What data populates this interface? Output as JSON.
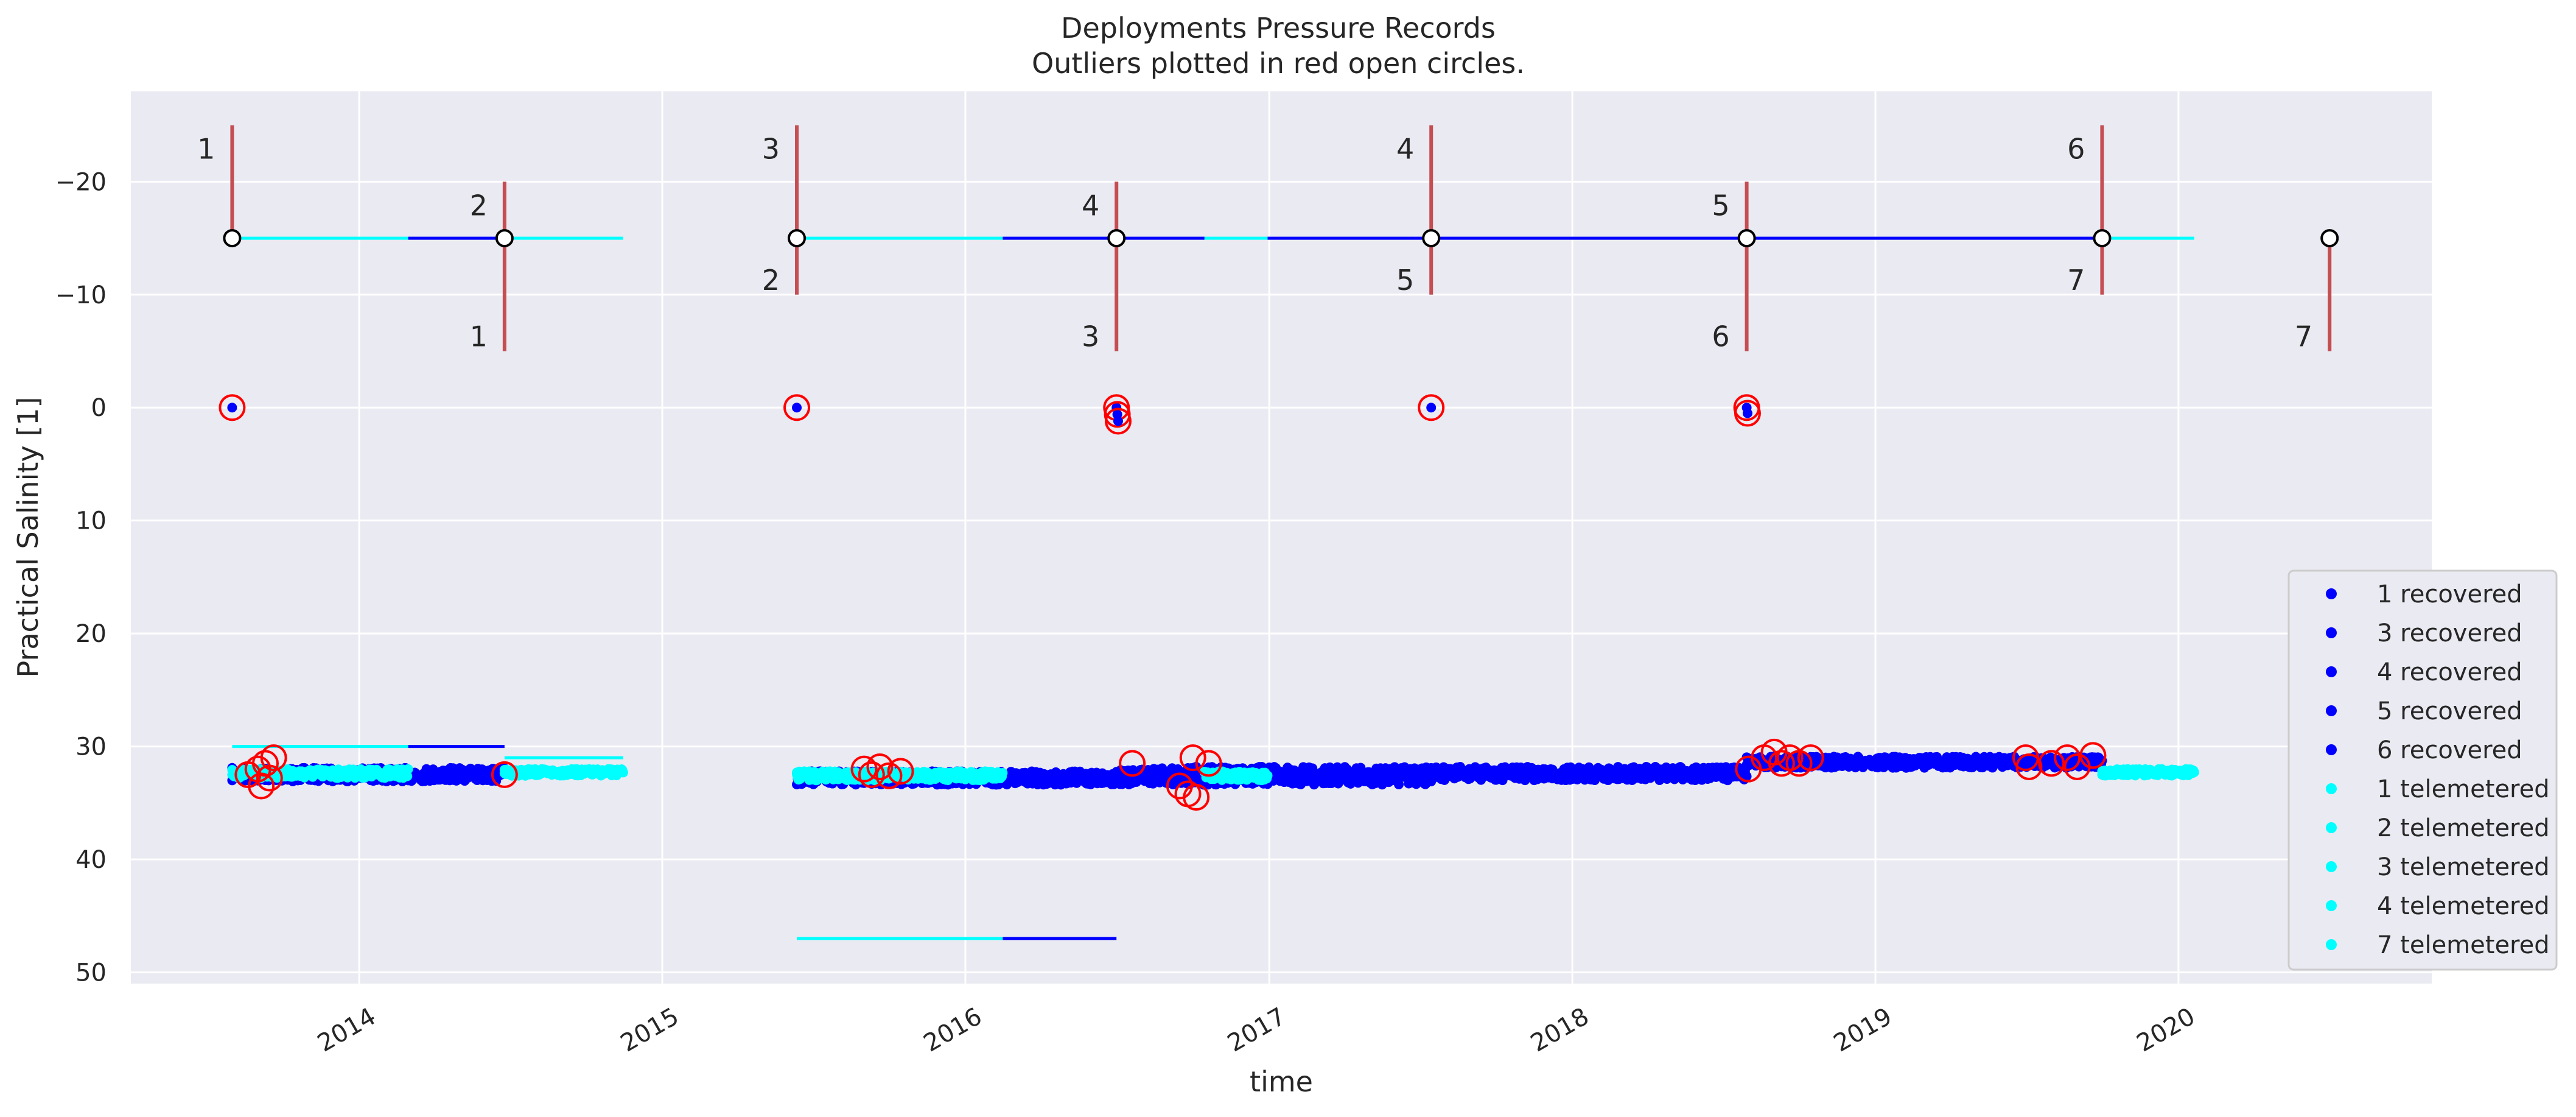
{
  "chart_data": {
    "type": "scatter",
    "title": "Deployments Pressure Records",
    "subtitle": "Outliers plotted in red open circles.",
    "xlabel": "time",
    "ylabel": "Practical Salinity [1]",
    "x_type": "date",
    "xlim": [
      "2013-04-01",
      "2020-11-01"
    ],
    "ylim": [
      51,
      -28
    ],
    "y_inverted": true,
    "x_ticks": [
      "2014",
      "2015",
      "2016",
      "2017",
      "2018",
      "2019",
      "2020"
    ],
    "x_tick_dates": [
      "2014-01-01",
      "2015-01-01",
      "2016-01-01",
      "2017-01-01",
      "2018-01-01",
      "2019-01-01",
      "2020-01-01"
    ],
    "y_ticks": [
      -20,
      -10,
      0,
      10,
      20,
      30,
      40,
      50
    ],
    "y_tick_labels": [
      "−20",
      "−10",
      "0",
      "10",
      "20",
      "30",
      "40",
      "50"
    ],
    "grid": true,
    "background": "#eaeaf2",
    "legend_position": "lower-right",
    "colors": {
      "recovered": "#0000ff",
      "telemetered": "#00ffff",
      "outlier": "#ff0000",
      "marker_line": "#c44e52"
    },
    "legend": [
      {
        "label": "1 recovered",
        "color": "#0000ff"
      },
      {
        "label": "3 recovered",
        "color": "#0000ff"
      },
      {
        "label": "4 recovered",
        "color": "#0000ff"
      },
      {
        "label": "5 recovered",
        "color": "#0000ff"
      },
      {
        "label": "6 recovered",
        "color": "#0000ff"
      },
      {
        "label": "1 telemetered",
        "color": "#00ffff"
      },
      {
        "label": "2 telemetered",
        "color": "#00ffff"
      },
      {
        "label": "3 telemetered",
        "color": "#00ffff"
      },
      {
        "label": "4 telemetered",
        "color": "#00ffff"
      },
      {
        "label": "7 telemetered",
        "color": "#00ffff"
      }
    ],
    "deployment_markers": [
      {
        "label": "1",
        "date": "2013-08-01",
        "y": -15,
        "line_to": -25,
        "label_side": "above"
      },
      {
        "label": "2",
        "date": "2014-06-25",
        "y": -15,
        "line_to": -20,
        "label_side": "above"
      },
      {
        "label": "1",
        "date": "2014-06-25",
        "y": -15,
        "line_to": -5,
        "label_side": "below"
      },
      {
        "label": "3",
        "date": "2015-06-12",
        "y": -15,
        "line_to": -25,
        "label_side": "above"
      },
      {
        "label": "2",
        "date": "2015-06-12",
        "y": -15,
        "line_to": -10,
        "label_side": "below"
      },
      {
        "label": "4",
        "date": "2016-07-01",
        "y": -15,
        "line_to": -20,
        "label_side": "above"
      },
      {
        "label": "3",
        "date": "2016-07-01",
        "y": -15,
        "line_to": -5,
        "label_side": "below"
      },
      {
        "label": "4",
        "date": "2017-07-15",
        "y": -15,
        "line_to": -25,
        "label_side": "above"
      },
      {
        "label": "5",
        "date": "2017-07-15",
        "y": -15,
        "line_to": -10,
        "label_side": "below"
      },
      {
        "label": "5",
        "date": "2018-07-30",
        "y": -15,
        "line_to": -20,
        "label_side": "above"
      },
      {
        "label": "6",
        "date": "2018-07-30",
        "y": -15,
        "line_to": -5,
        "label_side": "below"
      },
      {
        "label": "6",
        "date": "2019-10-01",
        "y": -15,
        "line_to": -25,
        "label_side": "above"
      },
      {
        "label": "7",
        "date": "2019-10-01",
        "y": -15,
        "line_to": -10,
        "label_side": "below"
      },
      {
        "label": "7",
        "date": "2020-07-01",
        "y": -15,
        "line_to": -5,
        "label_side": "below"
      }
    ],
    "deployment_spans": [
      {
        "from": "2013-08-01",
        "to": "2014-03-01",
        "y": -15,
        "color": "#00ffff"
      },
      {
        "from": "2014-03-01",
        "to": "2014-06-25",
        "y": -15,
        "color": "#0000ff"
      },
      {
        "from": "2014-06-25",
        "to": "2014-11-15",
        "y": -15,
        "color": "#00ffff"
      },
      {
        "from": "2015-06-12",
        "to": "2016-02-15",
        "y": -15,
        "color": "#00ffff"
      },
      {
        "from": "2016-02-15",
        "to": "2016-10-15",
        "y": -15,
        "color": "#0000ff"
      },
      {
        "from": "2016-10-15",
        "to": "2016-12-30",
        "y": -15,
        "color": "#00ffff"
      },
      {
        "from": "2016-12-30",
        "to": "2019-10-01",
        "y": -15,
        "color": "#0000ff"
      },
      {
        "from": "2019-10-01",
        "to": "2020-01-20",
        "y": -15,
        "color": "#00ffff"
      }
    ],
    "lines": [
      {
        "from": "2013-08-01",
        "to": "2014-03-01",
        "y": 30,
        "color": "#00ffff"
      },
      {
        "from": "2014-03-01",
        "to": "2014-06-25",
        "y": 30,
        "color": "#0000ff"
      },
      {
        "from": "2014-06-25",
        "to": "2014-11-15",
        "y": 31,
        "color": "#00ffff"
      },
      {
        "from": "2015-06-12",
        "to": "2016-02-15",
        "y": 47,
        "color": "#00ffff"
      },
      {
        "from": "2016-02-15",
        "to": "2016-07-01",
        "y": 47,
        "color": "#0000ff"
      }
    ],
    "series": [
      {
        "name": "1 recovered",
        "color": "#0000ff",
        "from": "2013-08-01",
        "to": "2014-06-25",
        "y_mean": 32.5,
        "y_spread": 0.6
      },
      {
        "name": "1 telemetered",
        "color": "#00ffff",
        "from": "2013-08-01",
        "to": "2014-03-01",
        "y_mean": 32.4,
        "y_spread": 0.4
      },
      {
        "name": "2 telemetered",
        "color": "#00ffff",
        "from": "2014-06-25",
        "to": "2014-11-15",
        "y_mean": 32.3,
        "y_spread": 0.3
      },
      {
        "name": "3 recovered",
        "color": "#0000ff",
        "from": "2015-06-12",
        "to": "2016-07-01",
        "y_mean": 32.8,
        "y_spread": 0.6
      },
      {
        "name": "3 telemetered",
        "color": "#00ffff",
        "from": "2015-06-12",
        "to": "2016-02-15",
        "y_mean": 32.6,
        "y_spread": 0.4
      },
      {
        "name": "4 recovered",
        "color": "#0000ff",
        "from": "2016-07-01",
        "to": "2017-07-15",
        "y_mean": 32.6,
        "y_spread": 0.8
      },
      {
        "name": "4 telemetered",
        "color": "#00ffff",
        "from": "2016-10-15",
        "to": "2016-12-30",
        "y_mean": 32.6,
        "y_spread": 0.4
      },
      {
        "name": "5 recovered",
        "color": "#0000ff",
        "from": "2017-07-15",
        "to": "2018-07-30",
        "y_mean": 32.4,
        "y_spread": 0.6
      },
      {
        "name": "6 recovered",
        "color": "#0000ff",
        "from": "2018-07-30",
        "to": "2019-10-01",
        "y_mean": 31.4,
        "y_spread": 0.5
      },
      {
        "name": "7 telemetered",
        "color": "#00ffff",
        "from": "2019-10-01",
        "to": "2020-01-20",
        "y_mean": 32.3,
        "y_spread": 0.3
      }
    ],
    "outliers": [
      {
        "date": "2013-08-01",
        "y": 0
      },
      {
        "date": "2013-08-20",
        "y": 32.5
      },
      {
        "date": "2013-09-01",
        "y": 32.0
      },
      {
        "date": "2013-09-05",
        "y": 33.5
      },
      {
        "date": "2013-09-10",
        "y": 31.5
      },
      {
        "date": "2013-09-15",
        "y": 32.8
      },
      {
        "date": "2013-09-20",
        "y": 31.0
      },
      {
        "date": "2014-06-25",
        "y": 32.5
      },
      {
        "date": "2015-06-12",
        "y": 0
      },
      {
        "date": "2015-09-01",
        "y": 32.0
      },
      {
        "date": "2015-09-10",
        "y": 32.5
      },
      {
        "date": "2015-09-20",
        "y": 31.8
      },
      {
        "date": "2015-10-01",
        "y": 32.6
      },
      {
        "date": "2015-10-15",
        "y": 32.2
      },
      {
        "date": "2016-07-01",
        "y": 0
      },
      {
        "date": "2016-07-02",
        "y": 0.6
      },
      {
        "date": "2016-07-03",
        "y": 1.2
      },
      {
        "date": "2016-07-20",
        "y": 31.5
      },
      {
        "date": "2016-09-15",
        "y": 33.5
      },
      {
        "date": "2016-09-25",
        "y": 34.2
      },
      {
        "date": "2016-10-01",
        "y": 31.0
      },
      {
        "date": "2016-10-05",
        "y": 34.5
      },
      {
        "date": "2016-10-20",
        "y": 31.5
      },
      {
        "date": "2017-07-15",
        "y": 0
      },
      {
        "date": "2018-07-30",
        "y": 0
      },
      {
        "date": "2018-07-31",
        "y": 0.5
      },
      {
        "date": "2018-08-01",
        "y": 32.0
      },
      {
        "date": "2018-08-20",
        "y": 31.0
      },
      {
        "date": "2018-09-01",
        "y": 30.5
      },
      {
        "date": "2018-09-10",
        "y": 31.5
      },
      {
        "date": "2018-09-20",
        "y": 31.0
      },
      {
        "date": "2018-10-01",
        "y": 31.5
      },
      {
        "date": "2018-10-15",
        "y": 31.0
      },
      {
        "date": "2019-07-01",
        "y": 31.0
      },
      {
        "date": "2019-07-05",
        "y": 31.8
      },
      {
        "date": "2019-08-01",
        "y": 31.5
      },
      {
        "date": "2019-08-20",
        "y": 31.0
      },
      {
        "date": "2019-09-01",
        "y": 31.8
      },
      {
        "date": "2019-09-20",
        "y": 30.8
      }
    ]
  }
}
